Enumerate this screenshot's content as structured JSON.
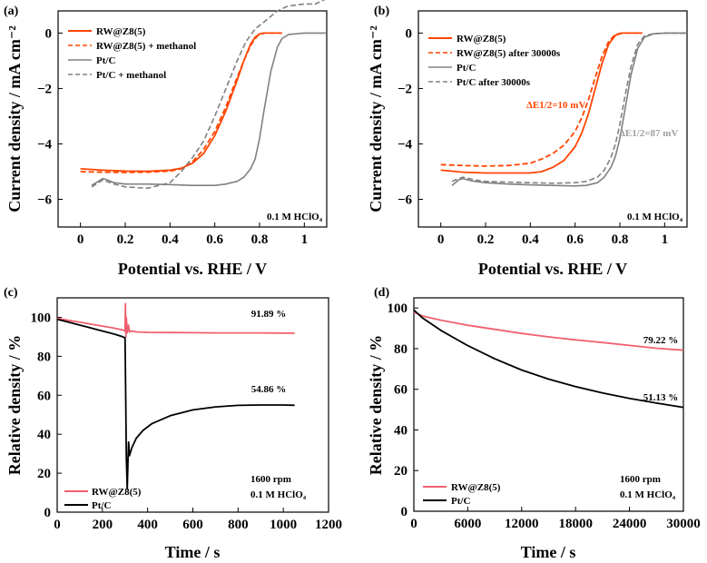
{
  "chart_data": [
    {
      "panel": "(a)",
      "type": "line",
      "xlabel": "Potential vs. RHE / V",
      "ylabel": "Current density / mA cm⁻²",
      "xlim": [
        -0.1,
        1.1
      ],
      "ylim": [
        -7,
        0.8
      ],
      "xticks": [
        0.0,
        0.2,
        0.4,
        0.6,
        0.8,
        1.0
      ],
      "yticks": [
        0,
        -2,
        -4,
        -6
      ],
      "annotation": "0.1 M HClO₄",
      "legend_position": "top-left",
      "series": [
        {
          "name": "RW@Z8(5)",
          "color": "#ff4500",
          "dash": "solid",
          "x": [
            0.0,
            0.1,
            0.2,
            0.3,
            0.4,
            0.45,
            0.5,
            0.55,
            0.6,
            0.65,
            0.7,
            0.73,
            0.76,
            0.78,
            0.8,
            0.82,
            0.85,
            0.9
          ],
          "y": [
            -4.9,
            -4.95,
            -4.98,
            -4.99,
            -4.95,
            -4.88,
            -4.7,
            -4.35,
            -3.7,
            -2.8,
            -1.7,
            -1.0,
            -0.4,
            -0.15,
            -0.03,
            0.0,
            0.0,
            0.0
          ]
        },
        {
          "name": "RW@Z8(5) + methanol",
          "color": "#ff4500",
          "dash": "dashed",
          "x": [
            0.0,
            0.1,
            0.2,
            0.3,
            0.4,
            0.45,
            0.5,
            0.55,
            0.6,
            0.65,
            0.7,
            0.73,
            0.76,
            0.79,
            0.82,
            0.85,
            0.9
          ],
          "y": [
            -5.0,
            -5.02,
            -5.03,
            -5.02,
            -4.98,
            -4.9,
            -4.65,
            -4.2,
            -3.55,
            -2.65,
            -1.6,
            -1.0,
            -0.45,
            -0.1,
            0.0,
            0.0,
            0.0
          ]
        },
        {
          "name": "Pt/C",
          "color": "#808080",
          "dash": "solid",
          "x": [
            0.05,
            0.08,
            0.1,
            0.12,
            0.15,
            0.2,
            0.3,
            0.4,
            0.5,
            0.6,
            0.65,
            0.7,
            0.73,
            0.76,
            0.78,
            0.8,
            0.82,
            0.85,
            0.88,
            0.9,
            0.93,
            1.0,
            1.1
          ],
          "y": [
            -5.5,
            -5.35,
            -5.25,
            -5.3,
            -5.4,
            -5.45,
            -5.45,
            -5.47,
            -5.5,
            -5.5,
            -5.45,
            -5.35,
            -5.2,
            -4.9,
            -4.55,
            -3.8,
            -2.8,
            -1.4,
            -0.5,
            -0.2,
            -0.05,
            0.0,
            0.0
          ]
        },
        {
          "name": "Pt/C + methanol",
          "color": "#808080",
          "dash": "dashed",
          "x": [
            0.05,
            0.08,
            0.1,
            0.15,
            0.2,
            0.3,
            0.4,
            0.45,
            0.5,
            0.55,
            0.6,
            0.65,
            0.7,
            0.74,
            0.78,
            0.82,
            0.85,
            0.88,
            0.92,
            0.95,
            1.0,
            1.05,
            1.1
          ],
          "y": [
            -5.55,
            -5.4,
            -5.3,
            -5.45,
            -5.55,
            -5.6,
            -5.4,
            -5.0,
            -4.5,
            -3.9,
            -3.0,
            -2.0,
            -1.0,
            -0.3,
            0.15,
            0.4,
            0.6,
            0.8,
            0.95,
            1.0,
            1.05,
            1.05,
            1.25
          ]
        }
      ]
    },
    {
      "panel": "(b)",
      "type": "line",
      "xlabel": "Potential vs. RHE / V",
      "ylabel": "Current density / mA cm⁻²",
      "xlim": [
        -0.1,
        1.1
      ],
      "ylim": [
        -7,
        0.8
      ],
      "xticks": [
        0.0,
        0.2,
        0.4,
        0.6,
        0.8,
        1.0
      ],
      "yticks": [
        0,
        -2,
        -4,
        -6
      ],
      "annotation": "0.1 M HClO₄",
      "annotations": [
        "ΔE1/2=10 mV",
        "ΔE1/2=87 mV"
      ],
      "annotation_colors": [
        "#ff4500",
        "#a0a0a0"
      ],
      "legend_position": "top-left",
      "series": [
        {
          "name": "RW@Z8(5)",
          "color": "#ff4500",
          "dash": "solid",
          "x": [
            0.0,
            0.1,
            0.2,
            0.3,
            0.4,
            0.45,
            0.5,
            0.55,
            0.6,
            0.63,
            0.66,
            0.69,
            0.72,
            0.75,
            0.78,
            0.81,
            0.85,
            0.9
          ],
          "y": [
            -4.95,
            -5.02,
            -5.05,
            -5.05,
            -5.05,
            -5.0,
            -4.85,
            -4.6,
            -4.1,
            -3.6,
            -2.9,
            -2.0,
            -1.1,
            -0.4,
            -0.08,
            0.0,
            0.0,
            0.0
          ]
        },
        {
          "name": "RW@Z8(5) after 30000s",
          "color": "#ff4500",
          "dash": "dashed",
          "x": [
            0.0,
            0.1,
            0.2,
            0.3,
            0.4,
            0.45,
            0.5,
            0.55,
            0.6,
            0.63,
            0.66,
            0.69,
            0.72,
            0.75,
            0.78,
            0.81,
            0.85,
            0.9
          ],
          "y": [
            -4.75,
            -4.78,
            -4.8,
            -4.78,
            -4.7,
            -4.55,
            -4.35,
            -4.05,
            -3.55,
            -3.05,
            -2.4,
            -1.6,
            -0.85,
            -0.3,
            -0.05,
            0.0,
            0.0,
            0.0
          ]
        },
        {
          "name": "Pt/C",
          "color": "#808080",
          "dash": "solid",
          "x": [
            0.05,
            0.08,
            0.1,
            0.12,
            0.15,
            0.2,
            0.3,
            0.4,
            0.5,
            0.6,
            0.65,
            0.7,
            0.73,
            0.76,
            0.78,
            0.8,
            0.82,
            0.85,
            0.88,
            0.91,
            0.95,
            1.0,
            1.1
          ],
          "y": [
            -5.5,
            -5.3,
            -5.25,
            -5.3,
            -5.35,
            -5.4,
            -5.45,
            -5.48,
            -5.5,
            -5.52,
            -5.5,
            -5.4,
            -5.2,
            -4.85,
            -4.45,
            -3.8,
            -2.9,
            -1.5,
            -0.55,
            -0.15,
            -0.03,
            0.0,
            0.0
          ]
        },
        {
          "name": "Pt/C after 30000s",
          "color": "#808080",
          "dash": "dashed",
          "x": [
            0.05,
            0.08,
            0.1,
            0.15,
            0.2,
            0.3,
            0.4,
            0.5,
            0.6,
            0.65,
            0.7,
            0.73,
            0.76,
            0.78,
            0.8,
            0.82,
            0.85,
            0.88,
            0.91,
            0.95,
            1.0,
            1.1
          ],
          "y": [
            -5.35,
            -5.25,
            -5.2,
            -5.3,
            -5.35,
            -5.38,
            -5.4,
            -5.42,
            -5.4,
            -5.35,
            -5.2,
            -4.95,
            -4.5,
            -4.0,
            -3.3,
            -2.4,
            -1.2,
            -0.4,
            -0.1,
            -0.02,
            0.0,
            0.0
          ]
        }
      ]
    },
    {
      "panel": "(c)",
      "type": "line",
      "xlabel": "Time / s",
      "ylabel": "Relative density / %",
      "xlim": [
        0,
        1200
      ],
      "ylim": [
        0,
        110
      ],
      "xticks": [
        0,
        200,
        400,
        600,
        800,
        1000,
        1200
      ],
      "yticks": [
        0,
        20,
        40,
        60,
        80,
        100
      ],
      "annotation": "1600 rpm",
      "annotation2": "0.1 M  HClO₄",
      "legend_position": "bottom-left",
      "series": [
        {
          "name": "RW@Z8(5)",
          "color": "#f06070",
          "dash": "solid",
          "x": [
            0,
            50,
            100,
            150,
            200,
            250,
            290,
            300,
            302,
            304,
            306,
            310,
            315,
            320,
            330,
            350,
            400,
            500,
            600,
            700,
            800,
            900,
            1000,
            1050
          ],
          "y": [
            99.5,
            98.5,
            97.5,
            96.5,
            95.5,
            94.5,
            93.5,
            93.0,
            107.0,
            90.0,
            100.0,
            92.0,
            96.0,
            92.5,
            93.0,
            92.5,
            92.3,
            92.2,
            92.1,
            92.0,
            92.0,
            92.0,
            91.9,
            91.89
          ]
        },
        {
          "name": "Pt/C",
          "color": "#000000",
          "dash": "solid",
          "x": [
            0,
            50,
            100,
            150,
            200,
            250,
            290,
            300,
            303,
            306,
            310,
            313,
            316,
            320,
            330,
            350,
            380,
            420,
            500,
            600,
            700,
            800,
            900,
            1000,
            1050
          ],
          "y": [
            99.0,
            97.5,
            96.0,
            94.5,
            93.0,
            91.5,
            90.0,
            89.5,
            60.0,
            28.0,
            12.0,
            26.0,
            36.0,
            29.0,
            33.0,
            38.0,
            42.0,
            45.5,
            49.5,
            52.5,
            54.0,
            54.8,
            55.0,
            55.0,
            54.86
          ]
        }
      ],
      "end_labels": [
        "91.89 %",
        "54.86 %"
      ]
    },
    {
      "panel": "(d)",
      "type": "line",
      "xlabel": "Time / s",
      "ylabel": "Relative density / %",
      "xlim": [
        0,
        30000
      ],
      "ylim": [
        0,
        105
      ],
      "xticks": [
        0,
        6000,
        12000,
        18000,
        24000,
        30000
      ],
      "yticks": [
        0,
        20,
        40,
        60,
        80,
        100
      ],
      "annotation": "1600 rpm",
      "annotation2": "0.1 M  HClO₄",
      "legend_position": "bottom-left",
      "series": [
        {
          "name": "RW@Z8(5)",
          "color": "#f06070",
          "dash": "solid",
          "x": [
            0,
            1000,
            3000,
            6000,
            9000,
            12000,
            15000,
            18000,
            21000,
            24000,
            27000,
            30000
          ],
          "y": [
            98.0,
            96.0,
            94.0,
            91.5,
            89.5,
            87.5,
            85.8,
            84.3,
            83.0,
            81.6,
            80.2,
            79.22
          ]
        },
        {
          "name": "Pt/C",
          "color": "#000000",
          "dash": "solid",
          "x": [
            0,
            1000,
            3000,
            6000,
            9000,
            12000,
            15000,
            18000,
            21000,
            24000,
            27000,
            30000
          ],
          "y": [
            99.0,
            95.0,
            89.0,
            81.5,
            75.0,
            69.5,
            65.0,
            61.3,
            58.2,
            55.5,
            53.2,
            51.13
          ]
        }
      ],
      "end_labels": [
        "79.22 %",
        "51.13 %"
      ]
    }
  ]
}
